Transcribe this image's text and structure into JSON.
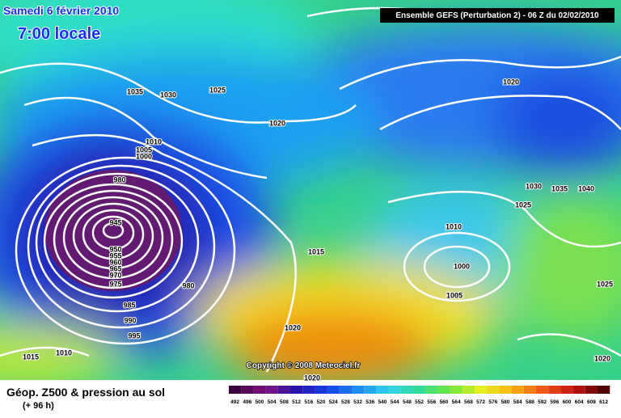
{
  "header": {
    "date": "Samedi 6 février 2010",
    "time": "7:00 locale",
    "run": "Ensemble GEFS (Perturbation 2)  - 06 Z du 02/02/2010"
  },
  "copyright": "Copyright © 2008 Meteociel.fr",
  "footer": {
    "title": "Géop. Z500 & pression au sol",
    "lead": "(+ 96 h)"
  },
  "isobar_labels": [
    1035,
    1030,
    1025,
    1020,
    1020,
    1010,
    1005,
    1000,
    980,
    945,
    950,
    955,
    960,
    965,
    970,
    975,
    980,
    985,
    990,
    995,
    1015,
    1010,
    1015,
    1020,
    1020,
    1010,
    1000,
    1005,
    1030,
    1035,
    1040,
    1025,
    1025,
    1020
  ],
  "colorbar": [
    492,
    496,
    500,
    504,
    508,
    512,
    516,
    520,
    524,
    528,
    532,
    536,
    540,
    544,
    548,
    552,
    556,
    560,
    564,
    568,
    572,
    576,
    580,
    584,
    588,
    592,
    596,
    600,
    604,
    608,
    612
  ]
}
